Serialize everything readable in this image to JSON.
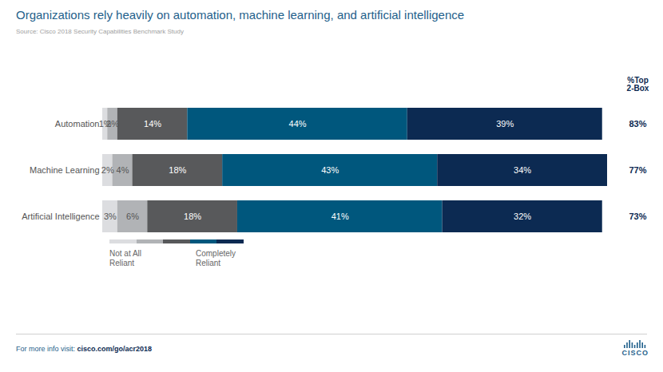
{
  "chart_data": {
    "type": "bar",
    "title": "Organizations rely heavily on automation, machine learning, and artificial intelligence",
    "subtitle": "Source: Cisco 2018 Security Capabilities Benchmark Study",
    "orientation": "horizontal",
    "stacked": true,
    "data_labels": true,
    "tick_labels": "y",
    "categories": [
      "Automation",
      "Machine Learning",
      "Artificial Intelligence"
    ],
    "xlim": [
      0,
      101
    ],
    "series": [
      {
        "color": "#dcdde0",
        "values": [
          1,
          2,
          3
        ],
        "value_labels": [
          "1%",
          "2%",
          "3%"
        ]
      },
      {
        "color": "#b1b3b6",
        "values": [
          2,
          4,
          6
        ],
        "value_labels": [
          "2%",
          "4%",
          "6%"
        ]
      },
      {
        "color": "#58595b",
        "values": [
          14,
          18,
          18
        ],
        "value_labels": [
          "14%",
          "18%",
          "18%"
        ]
      },
      {
        "color": "#00577d",
        "values": [
          44,
          43,
          41
        ],
        "value_labels": [
          "44%",
          "43%",
          "41%"
        ]
      },
      {
        "color": "#0c2a52",
        "values": [
          39,
          34,
          32
        ],
        "value_labels": [
          "39%",
          "34%",
          "32%"
        ]
      }
    ],
    "legend_labels": [
      "Not at All Reliant",
      "Completely Reliant"
    ],
    "top_2_box": {
      "title": "%Top 2-Box",
      "values": [
        83,
        77,
        73
      ],
      "value_labels": [
        "83%",
        "77%",
        "73%"
      ]
    },
    "footer": {
      "text": "For more info visit: ",
      "link": "cisco.com/go/acr2018"
    },
    "logo": "CISCO"
  }
}
